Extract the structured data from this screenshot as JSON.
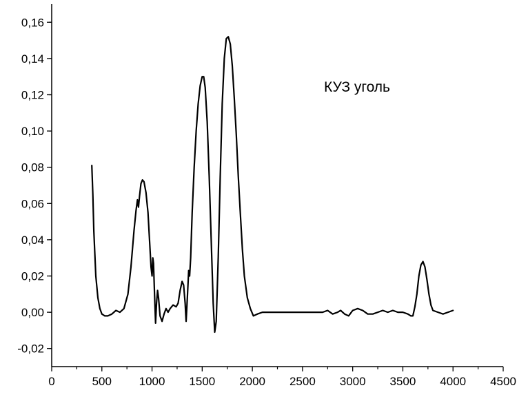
{
  "chart_data": {
    "type": "line",
    "title": "",
    "xlabel": "",
    "ylabel": "",
    "xlim": [
      0,
      4500
    ],
    "ylim": [
      -0.03,
      0.17
    ],
    "x_ticks": [
      0,
      500,
      1000,
      1500,
      2000,
      2500,
      3000,
      3500,
      4000,
      4500
    ],
    "x_tick_labels": [
      "0",
      "500",
      "1000",
      "1500",
      "2000",
      "2500",
      "3000",
      "3500",
      "4000",
      "4500"
    ],
    "y_ticks": [
      -0.02,
      0.0,
      0.02,
      0.04,
      0.06,
      0.08,
      0.1,
      0.12,
      0.14,
      0.16
    ],
    "y_tick_labels": [
      "-0,02",
      "0,00",
      "0,02",
      "0,04",
      "0,06",
      "0,08",
      "0,10",
      "0,12",
      "0,14",
      "0,16"
    ],
    "grid": false,
    "annotation": "КУЗ уголь",
    "line_color": "#000000",
    "series": [
      {
        "points": [
          [
            400,
            0.081
          ],
          [
            410,
            0.065
          ],
          [
            420,
            0.045
          ],
          [
            440,
            0.02
          ],
          [
            460,
            0.008
          ],
          [
            480,
            0.002
          ],
          [
            500,
            -0.001
          ],
          [
            530,
            -0.002
          ],
          [
            560,
            -0.002
          ],
          [
            600,
            -0.001
          ],
          [
            640,
            0.001
          ],
          [
            680,
            0.0
          ],
          [
            720,
            0.002
          ],
          [
            760,
            0.01
          ],
          [
            790,
            0.025
          ],
          [
            820,
            0.045
          ],
          [
            840,
            0.056
          ],
          [
            855,
            0.062
          ],
          [
            865,
            0.058
          ],
          [
            875,
            0.064
          ],
          [
            890,
            0.071
          ],
          [
            905,
            0.073
          ],
          [
            920,
            0.072
          ],
          [
            940,
            0.066
          ],
          [
            960,
            0.055
          ],
          [
            975,
            0.04
          ],
          [
            990,
            0.025
          ],
          [
            1000,
            0.02
          ],
          [
            1008,
            0.03
          ],
          [
            1015,
            0.027
          ],
          [
            1025,
            0.01
          ],
          [
            1035,
            -0.006
          ],
          [
            1045,
            0.005
          ],
          [
            1055,
            0.012
          ],
          [
            1065,
            0.008
          ],
          [
            1080,
            -0.002
          ],
          [
            1100,
            -0.005
          ],
          [
            1120,
            -0.001
          ],
          [
            1140,
            0.002
          ],
          [
            1160,
            0.0
          ],
          [
            1180,
            0.002
          ],
          [
            1210,
            0.004
          ],
          [
            1240,
            0.003
          ],
          [
            1260,
            0.005
          ],
          [
            1280,
            0.012
          ],
          [
            1300,
            0.017
          ],
          [
            1315,
            0.015
          ],
          [
            1330,
            0.005
          ],
          [
            1340,
            -0.005
          ],
          [
            1352,
            0.008
          ],
          [
            1365,
            0.023
          ],
          [
            1375,
            0.02
          ],
          [
            1385,
            0.03
          ],
          [
            1400,
            0.055
          ],
          [
            1420,
            0.08
          ],
          [
            1440,
            0.1
          ],
          [
            1460,
            0.115
          ],
          [
            1480,
            0.125
          ],
          [
            1500,
            0.13
          ],
          [
            1515,
            0.13
          ],
          [
            1530,
            0.124
          ],
          [
            1550,
            0.105
          ],
          [
            1570,
            0.075
          ],
          [
            1590,
            0.04
          ],
          [
            1610,
            0.005
          ],
          [
            1625,
            -0.011
          ],
          [
            1640,
            -0.005
          ],
          [
            1660,
            0.03
          ],
          [
            1680,
            0.075
          ],
          [
            1700,
            0.115
          ],
          [
            1720,
            0.14
          ],
          [
            1740,
            0.151
          ],
          [
            1760,
            0.152
          ],
          [
            1780,
            0.148
          ],
          [
            1800,
            0.136
          ],
          [
            1820,
            0.118
          ],
          [
            1840,
            0.098
          ],
          [
            1860,
            0.075
          ],
          [
            1880,
            0.055
          ],
          [
            1900,
            0.035
          ],
          [
            1920,
            0.02
          ],
          [
            1950,
            0.008
          ],
          [
            1980,
            0.002
          ],
          [
            2010,
            -0.002
          ],
          [
            2050,
            -0.001
          ],
          [
            2100,
            0.0
          ],
          [
            2200,
            0.0
          ],
          [
            2300,
            0.0
          ],
          [
            2400,
            0.0
          ],
          [
            2500,
            0.0
          ],
          [
            2600,
            0.0
          ],
          [
            2700,
            0.0
          ],
          [
            2750,
            0.001
          ],
          [
            2800,
            -0.001
          ],
          [
            2850,
            0.0
          ],
          [
            2880,
            0.001
          ],
          [
            2920,
            -0.001
          ],
          [
            2960,
            -0.002
          ],
          [
            3000,
            0.001
          ],
          [
            3050,
            0.002
          ],
          [
            3100,
            0.001
          ],
          [
            3150,
            -0.001
          ],
          [
            3200,
            -0.001
          ],
          [
            3250,
            0.0
          ],
          [
            3300,
            0.001
          ],
          [
            3350,
            0.0
          ],
          [
            3400,
            0.001
          ],
          [
            3450,
            0.0
          ],
          [
            3500,
            0.0
          ],
          [
            3550,
            -0.001
          ],
          [
            3580,
            -0.002
          ],
          [
            3600,
            -0.002
          ],
          [
            3620,
            0.003
          ],
          [
            3640,
            0.01
          ],
          [
            3660,
            0.02
          ],
          [
            3680,
            0.026
          ],
          [
            3700,
            0.028
          ],
          [
            3720,
            0.025
          ],
          [
            3740,
            0.018
          ],
          [
            3760,
            0.01
          ],
          [
            3780,
            0.004
          ],
          [
            3800,
            0.001
          ],
          [
            3850,
            0.0
          ],
          [
            3900,
            -0.001
          ],
          [
            3950,
            0.0
          ],
          [
            4000,
            0.001
          ]
        ]
      }
    ]
  }
}
